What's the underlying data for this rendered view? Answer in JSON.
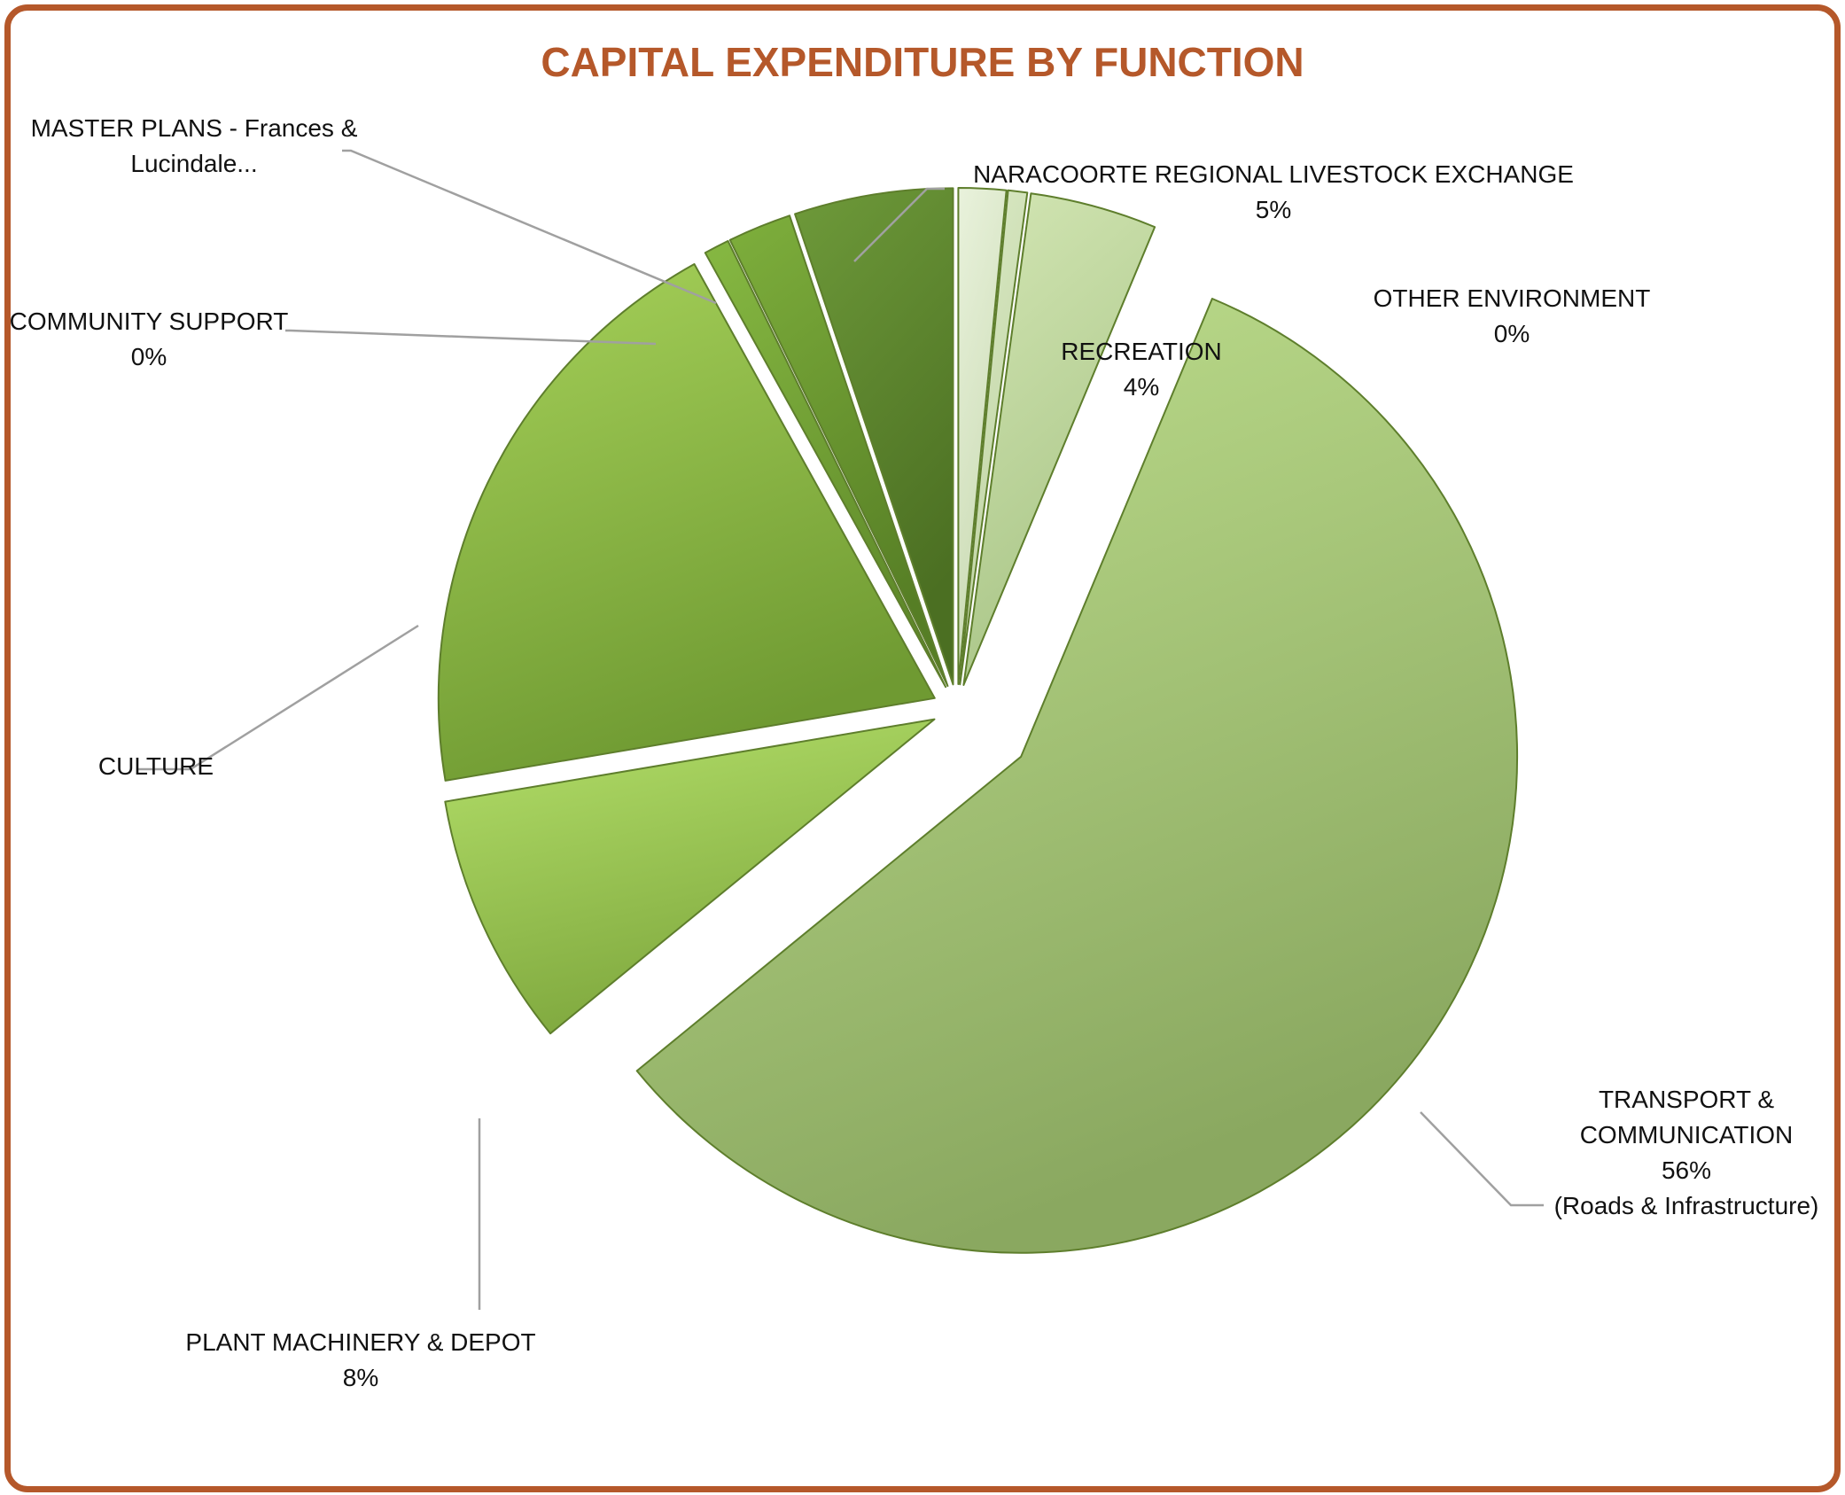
{
  "colors": {
    "frame_border": "#b5582a",
    "title": "#b5582a",
    "label_text": "#111111",
    "leader_line": "#a0a0a0"
  },
  "chart_data": {
    "type": "pie",
    "title": "CAPITAL EXPENDITURE BY FUNCTION",
    "legend": "none",
    "slices": [
      {
        "category": "OTHER ENVIRONMENT",
        "value": 0,
        "shown_percent": "0%",
        "label_lines": [
          "OTHER ENVIRONMENT",
          "0%"
        ],
        "estimated_value": 1.5,
        "color_light": "#e9f2dc",
        "color_dark": "#c9dab2"
      },
      {
        "category": "",
        "value": 0.6,
        "label_lines": [],
        "color_light": "#dbeac6",
        "color_dark": "#bfd3a3"
      },
      {
        "category": "RECREATION",
        "value": 4,
        "shown_percent": "4%",
        "label_lines": [
          "RECREATION",
          "4%"
        ],
        "color_light": "#d3e6b4",
        "color_dark": "#a9c587"
      },
      {
        "category": "TRANSPORT & COMMUNICATION",
        "value": 56,
        "shown_percent": "56%",
        "label_lines": [
          "TRANSPORT &",
          "COMMUNICATION",
          "56%",
          "(Roads & Infrastructure)"
        ],
        "color_light": "#c0e08f",
        "color_dark": "#8aa860"
      },
      {
        "category": "PLANT MACHINERY & DEPOT",
        "value": 8,
        "shown_percent": "8%",
        "label_lines": [
          "PLANT MACHINERY & DEPOT",
          "8%"
        ],
        "color_light": "#b4e06a",
        "color_dark": "#7fa83e"
      },
      {
        "category": "CULTURE",
        "value": 19,
        "label_lines": [
          "CULTURE"
        ],
        "color_light": "#a7d25a",
        "color_dark": "#6f9a32"
      },
      {
        "category": "COMMUNITY SUPPORT",
        "value": 0,
        "shown_percent": "0%",
        "label_lines": [
          "COMMUNITY SUPPORT",
          "0%"
        ],
        "estimated_value": 0.8,
        "color_light": "#86b842",
        "color_dark": "#5f8a2a"
      },
      {
        "category": "MASTER PLANS - Frances & Lucindale...",
        "value": 2,
        "label_lines": [
          "MASTER PLANS - Frances &",
          "Lucindale..."
        ],
        "color_light": "#7eaf3c",
        "color_dark": "#567e25"
      },
      {
        "category": "NARACOORTE REGIONAL LIVESTOCK EXCHANGE",
        "value": 5,
        "shown_percent": "5%",
        "label_lines": [
          "NARACOORTE REGIONAL LIVESTOCK EXCHANGE",
          "5%"
        ],
        "color_light": "#6e9a3a",
        "color_dark": "#4b6f22"
      }
    ]
  }
}
